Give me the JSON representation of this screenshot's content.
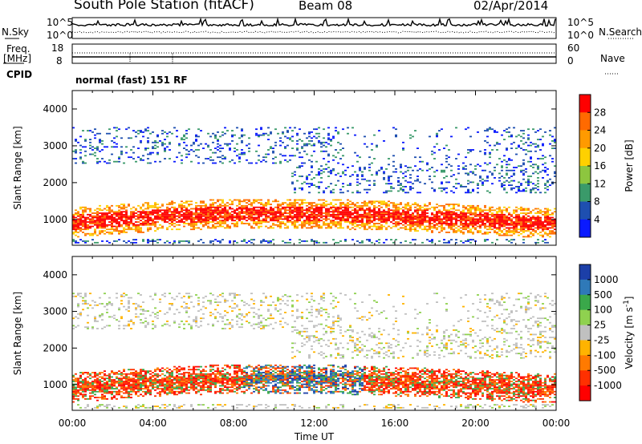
{
  "header": {
    "title": "South Pole Station (fitACF)",
    "beam": "Beam 08",
    "date": "02/Apr/2014"
  },
  "top_panels": {
    "nsky_label": "N.Sky",
    "nsearch_label": "N.Search",
    "noise_ticks_left": [
      "10^5",
      "10^0"
    ],
    "noise_ticks_right": [
      "10^5",
      "10^0"
    ],
    "freq_label": "Freq.",
    "freq_unit": "[MHz]",
    "freq_ticks": [
      "18",
      "8"
    ],
    "nave_label": "Nave",
    "nave_ticks": [
      "60",
      "0"
    ],
    "cpid_label": "CPID",
    "cpid_value": "normal (fast) 151 RF"
  },
  "chart_data": [
    {
      "type": "heatmap",
      "ylabel": "Slant Range [km]",
      "yticks": [
        "4000",
        "3000",
        "2000",
        "1000"
      ],
      "ylim": [
        300,
        4500
      ],
      "colorbar_label": "Power [dB]",
      "colorbar_ticks": [
        "28",
        "24",
        "20",
        "16",
        "12",
        "8",
        "4"
      ],
      "colorbar_colors": [
        "#ff0000",
        "#ff6a00",
        "#ff9a00",
        "#ffd000",
        "#8dc63f",
        "#3a9a6a",
        "#1e4fb0",
        "#0a1aff"
      ]
    },
    {
      "type": "heatmap",
      "ylabel": "Slant Range [km]",
      "yticks": [
        "4000",
        "3000",
        "2000",
        "1000"
      ],
      "ylim": [
        300,
        4500
      ],
      "colorbar_label": "Velocity [m s",
      "colorbar_sup": "-1",
      "colorbar_label_end": "]",
      "colorbar_ticks": [
        "1000",
        "500",
        "100",
        "25",
        "-25",
        "-100",
        "-500",
        "-1000"
      ],
      "colorbar_colors": [
        "#1c3fa8",
        "#2f79b8",
        "#3aa84a",
        "#8fd14f",
        "#c0c0c0",
        "#ffb300",
        "#ff7a00",
        "#ff3000",
        "#ff0000"
      ]
    }
  ],
  "xaxis": {
    "xticks": [
      "00:00",
      "04:00",
      "08:00",
      "12:00",
      "16:00",
      "20:00",
      "00:00"
    ],
    "xlabel": "Time UT"
  }
}
